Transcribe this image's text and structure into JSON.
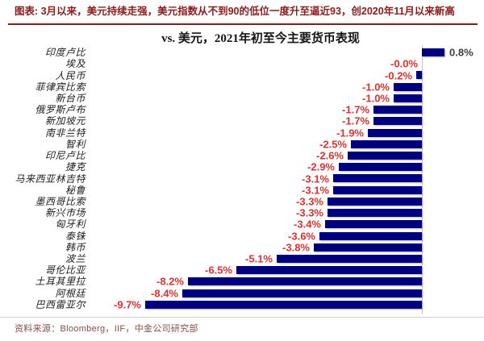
{
  "header": {
    "title": "图表: 3月以来，美元持续走强，美元指数从不到90的低位一度升至逼近93，创2020年11月以来新高"
  },
  "chart_data": {
    "type": "bar",
    "orientation": "horizontal",
    "title": "vs. 美元，2021年初至今主要货币表现",
    "unit": "%",
    "xlim": [
      -10.5,
      1.5
    ],
    "grid": false,
    "zero_axis_line": true,
    "categories": [
      "印度卢比",
      "埃及",
      "人民币",
      "菲律宾比索",
      "新台币",
      "俄罗斯卢布",
      "新加坡元",
      "南非兰特",
      "智利",
      "印尼卢比",
      "捷克",
      "马来西亚林吉特",
      "秘鲁",
      "墨西哥比索",
      "新兴市场",
      "匈牙利",
      "泰铢",
      "韩币",
      "波兰",
      "哥伦比亚",
      "土耳其里拉",
      "阿根廷",
      "巴西雷亚尔"
    ],
    "values": [
      0.8,
      -0.0,
      -0.2,
      -1.0,
      -1.0,
      -1.7,
      -1.7,
      -1.9,
      -2.5,
      -2.6,
      -2.9,
      -3.1,
      -3.1,
      -3.3,
      -3.3,
      -3.4,
      -3.6,
      -3.8,
      -5.1,
      -6.5,
      -8.2,
      -8.4,
      -9.7
    ],
    "value_labels": [
      "0.8%",
      "-0.0%",
      "-0.2%",
      "-1.0%",
      "-1.0%",
      "-1.7%",
      "-1.7%",
      "-1.9%",
      "-2.5%",
      "-2.6%",
      "-2.9%",
      "-3.1%",
      "-3.1%",
      "-3.3%",
      "-3.3%",
      "-3.4%",
      "-3.6%",
      "-3.8%",
      "-5.1%",
      "-6.5%",
      "-8.2%",
      "-8.4%",
      "-9.7%"
    ],
    "colors": {
      "bar": "#00007E",
      "negative_label": "#E03030",
      "positive_label": "#3F3F3F",
      "header_accent": "#8B1C1C",
      "source_text": "#8E4A4A",
      "axis_line": "#C2C2C2"
    }
  },
  "footer": {
    "source": "资料来源：Bloomberg，IIF，中金公司研究部"
  }
}
